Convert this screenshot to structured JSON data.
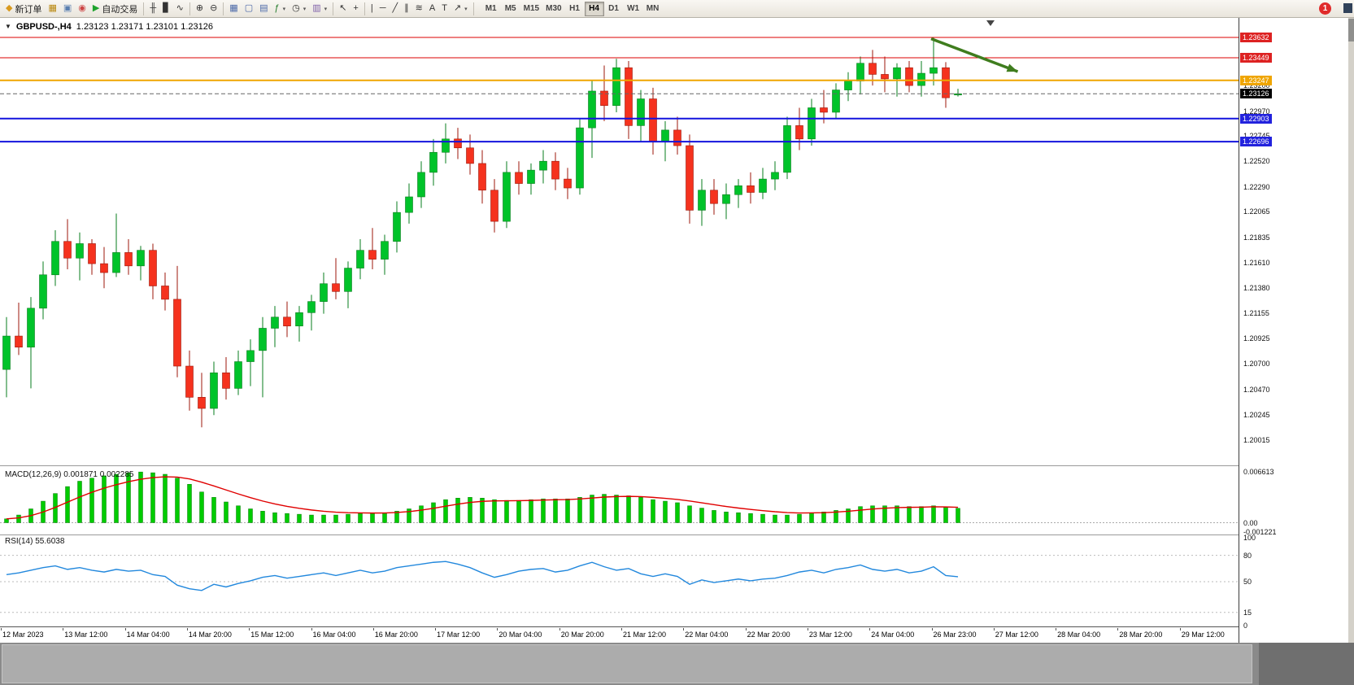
{
  "icons": {
    "panel_toggle": "▼"
  },
  "toolbar": {
    "notification_badge": "1",
    "items": [
      {
        "name": "new-order-button",
        "glyph": "◆",
        "glyph_color": "#d99a1f",
        "label": "新订单"
      },
      {
        "name": "new-chart-button",
        "glyph": "▦",
        "glyph_color": "#b8860b"
      },
      {
        "name": "profiles-button",
        "glyph": "▣",
        "glyph_color": "#5a7fb0"
      },
      {
        "name": "community-button",
        "glyph": "◉",
        "glyph_color": "#cc4444"
      },
      {
        "name": "auto-trading-button",
        "glyph": "▶",
        "glyph_color": "#1fa32e",
        "label": "自动交易"
      },
      {
        "sep": true
      },
      {
        "name": "bar-chart-button",
        "glyph": "╫",
        "glyph_color": "#333333"
      },
      {
        "name": "candlestick-chart-button",
        "glyph": "▊",
        "glyph_color": "#333333"
      },
      {
        "name": "line-chart-button",
        "glyph": "∿",
        "glyph_color": "#333333"
      },
      {
        "sep": true
      },
      {
        "name": "zoom-in-button",
        "glyph": "⊕",
        "glyph_color": "#333333"
      },
      {
        "name": "zoom-out-button",
        "glyph": "⊖",
        "glyph_color": "#333333"
      },
      {
        "sep": true
      },
      {
        "name": "tile-windows-button",
        "glyph": "▦",
        "glyph_color": "#4a68a8"
      },
      {
        "name": "cascade-windows-button",
        "glyph": "▢",
        "glyph_color": "#4a68a8"
      },
      {
        "name": "arrange-windows-button",
        "glyph": "▤",
        "glyph_color": "#4a68a8"
      },
      {
        "name": "indicators-button",
        "glyph": "ƒ",
        "glyph_color": "#1f7a28",
        "dropdown": true
      },
      {
        "name": "periods-button",
        "glyph": "◷",
        "glyph_color": "#333333",
        "dropdown": true
      },
      {
        "name": "templates-button",
        "glyph": "▥",
        "glyph_color": "#7d5ea8",
        "dropdown": true
      },
      {
        "sep": true
      },
      {
        "name": "cursor-button",
        "glyph": "↖",
        "glyph_color": "#333333"
      },
      {
        "name": "crosshair-button",
        "glyph": "+",
        "glyph_color": "#333333"
      },
      {
        "sep": true
      },
      {
        "name": "vertical-line-button",
        "glyph": "|",
        "glyph_color": "#333333"
      },
      {
        "name": "horizontal-line-button",
        "glyph": "─",
        "glyph_color": "#333333"
      },
      {
        "name": "trendline-button",
        "glyph": "╱",
        "glyph_color": "#333333"
      },
      {
        "name": "channel-button",
        "glyph": "∥",
        "glyph_color": "#333333"
      },
      {
        "name": "fibonacci-button",
        "glyph": "≋",
        "glyph_color": "#333333"
      },
      {
        "name": "text-button",
        "glyph": "A",
        "glyph_color": "#333333"
      },
      {
        "name": "label-button",
        "glyph": "T",
        "glyph_color": "#333333"
      },
      {
        "name": "shapes-button",
        "glyph": "↗",
        "glyph_color": "#333333",
        "dropdown": true
      },
      {
        "sep": true
      }
    ],
    "timeframes": [
      "M1",
      "M5",
      "M15",
      "M30",
      "H1",
      "H4",
      "D1",
      "W1",
      "MN"
    ],
    "active_timeframe": "H4"
  },
  "chart": {
    "symbol_period": "GBPUSD-,H4",
    "ohlc_text": "1.23123 1.23171 1.23101 1.23126"
  },
  "chart_data": {
    "type": "candlestick",
    "symbol": "GBPUSD-",
    "period": "H4",
    "ohlc_current": {
      "open": "1.23123",
      "high": "1.23171",
      "low": "1.23101",
      "close": "1.23126"
    },
    "colors": {
      "up": "#00c32a",
      "down": "#f5321e",
      "up_border": "#077d1d",
      "down_border": "#9c170b"
    },
    "candles": [
      [
        1.2065,
        1.2112,
        1.204,
        1.2095
      ],
      [
        1.2095,
        1.2125,
        1.2078,
        1.2085
      ],
      [
        1.2085,
        1.213,
        1.2048,
        1.212
      ],
      [
        1.212,
        1.2162,
        1.211,
        1.215
      ],
      [
        1.215,
        1.219,
        1.214,
        1.218
      ],
      [
        1.218,
        1.22,
        1.2155,
        1.2165
      ],
      [
        1.2165,
        1.2188,
        1.2145,
        1.2178
      ],
      [
        1.2178,
        1.2182,
        1.215,
        1.216
      ],
      [
        1.216,
        1.2175,
        1.2138,
        1.2152
      ],
      [
        1.2152,
        1.2205,
        1.2148,
        1.217
      ],
      [
        1.217,
        1.2182,
        1.215,
        1.2158
      ],
      [
        1.2158,
        1.2176,
        1.2145,
        1.2172
      ],
      [
        1.2172,
        1.2178,
        1.2128,
        1.214
      ],
      [
        1.214,
        1.2152,
        1.2118,
        1.2128
      ],
      [
        1.2128,
        1.2158,
        1.2058,
        1.2068
      ],
      [
        1.2068,
        1.2082,
        1.2028,
        1.204
      ],
      [
        1.204,
        1.2062,
        1.2013,
        1.203
      ],
      [
        1.203,
        1.2072,
        1.2024,
        1.2062
      ],
      [
        1.2062,
        1.2076,
        1.2038,
        1.2048
      ],
      [
        1.2048,
        1.2082,
        1.2042,
        1.2072
      ],
      [
        1.2072,
        1.2092,
        1.205,
        1.2082
      ],
      [
        1.2082,
        1.2112,
        1.204,
        1.2102
      ],
      [
        1.2102,
        1.2122,
        1.2085,
        1.2112
      ],
      [
        1.2112,
        1.2126,
        1.2094,
        1.2104
      ],
      [
        1.2104,
        1.2122,
        1.209,
        1.2116
      ],
      [
        1.2116,
        1.2132,
        1.21,
        1.2126
      ],
      [
        1.2126,
        1.2152,
        1.2115,
        1.2142
      ],
      [
        1.2142,
        1.2165,
        1.2128,
        1.2135
      ],
      [
        1.2135,
        1.2162,
        1.212,
        1.2156
      ],
      [
        1.2156,
        1.2182,
        1.2146,
        1.2172
      ],
      [
        1.2172,
        1.2192,
        1.2155,
        1.2164
      ],
      [
        1.2164,
        1.2186,
        1.215,
        1.218
      ],
      [
        1.218,
        1.2216,
        1.217,
        1.2206
      ],
      [
        1.2206,
        1.2232,
        1.2196,
        1.222
      ],
      [
        1.222,
        1.2252,
        1.221,
        1.2242
      ],
      [
        1.2242,
        1.2272,
        1.223,
        1.226
      ],
      [
        1.226,
        1.2286,
        1.225,
        1.2272
      ],
      [
        1.2272,
        1.2282,
        1.2254,
        1.2264
      ],
      [
        1.2264,
        1.2276,
        1.224,
        1.225
      ],
      [
        1.225,
        1.2262,
        1.2214,
        1.2226
      ],
      [
        1.2226,
        1.2236,
        1.2188,
        1.2198
      ],
      [
        1.2198,
        1.2252,
        1.2192,
        1.2242
      ],
      [
        1.2242,
        1.2252,
        1.2222,
        1.2232
      ],
      [
        1.2232,
        1.225,
        1.2222,
        1.2244
      ],
      [
        1.2244,
        1.2262,
        1.2232,
        1.2252
      ],
      [
        1.2252,
        1.226,
        1.2226,
        1.2236
      ],
      [
        1.2236,
        1.2246,
        1.2218,
        1.2228
      ],
      [
        1.2228,
        1.229,
        1.2222,
        1.2282
      ],
      [
        1.2282,
        1.2325,
        1.2255,
        1.2315
      ],
      [
        1.2315,
        1.2338,
        1.2288,
        1.2302
      ],
      [
        1.2302,
        1.2344,
        1.2296,
        1.2336
      ],
      [
        1.2336,
        1.2342,
        1.2272,
        1.2284
      ],
      [
        1.2284,
        1.2316,
        1.227,
        1.2308
      ],
      [
        1.2308,
        1.2318,
        1.2258,
        1.227
      ],
      [
        1.227,
        1.2288,
        1.2252,
        1.228
      ],
      [
        1.228,
        1.2292,
        1.2258,
        1.2266
      ],
      [
        1.2266,
        1.2276,
        1.2196,
        1.2208
      ],
      [
        1.2208,
        1.2236,
        1.2194,
        1.2226
      ],
      [
        1.2226,
        1.2236,
        1.2204,
        1.2214
      ],
      [
        1.2214,
        1.2232,
        1.22,
        1.2222
      ],
      [
        1.2222,
        1.2236,
        1.221,
        1.223
      ],
      [
        1.223,
        1.2242,
        1.2214,
        1.2224
      ],
      [
        1.2224,
        1.2246,
        1.2218,
        1.2236
      ],
      [
        1.2236,
        1.2252,
        1.2226,
        1.2242
      ],
      [
        1.2242,
        1.2292,
        1.2236,
        1.2284
      ],
      [
        1.2284,
        1.23,
        1.2262,
        1.2272
      ],
      [
        1.2272,
        1.2308,
        1.2266,
        1.23
      ],
      [
        1.23,
        1.2316,
        1.2286,
        1.2296
      ],
      [
        1.2296,
        1.2322,
        1.229,
        1.2316
      ],
      [
        1.2316,
        1.2332,
        1.2306,
        1.2324
      ],
      [
        1.2324,
        1.2346,
        1.2312,
        1.234
      ],
      [
        1.234,
        1.2352,
        1.232,
        1.233
      ],
      [
        1.233,
        1.2346,
        1.2314,
        1.2326
      ],
      [
        1.2326,
        1.234,
        1.231,
        1.2336
      ],
      [
        1.2336,
        1.2342,
        1.2314,
        1.232
      ],
      [
        1.232,
        1.2342,
        1.231,
        1.2331
      ],
      [
        1.2331,
        1.2363,
        1.232,
        1.2336
      ],
      [
        1.2336,
        1.2341,
        1.23,
        1.2309
      ],
      [
        1.23123,
        1.23171,
        1.23101,
        1.23126
      ]
    ],
    "levels": [
      {
        "name": "resistance-line-1",
        "price": 1.23632,
        "label": "1.23632",
        "color": "#dd0000",
        "line_width": 1,
        "label_bg": "#dd2222"
      },
      {
        "name": "resistance-line-2",
        "price": 1.23449,
        "label": "1.23449",
        "color": "#dd0000",
        "line_width": 1,
        "label_bg": "#dd2222"
      },
      {
        "name": "pivot-line",
        "price": 1.23247,
        "label": "1.23247",
        "color": "#efa500",
        "line_width": 2,
        "label_bg": "#efa500"
      },
      {
        "name": "support-line-1",
        "price": 1.22903,
        "label": "1.22903",
        "color": "#1414dd",
        "line_width": 2,
        "label_bg": "#2222dd"
      },
      {
        "name": "support-line-2",
        "price": 1.22696,
        "label": "1.22696",
        "color": "#1414dd",
        "line_width": 2,
        "label_bg": "#2222dd"
      }
    ],
    "current_price": {
      "price": 1.23126,
      "label": "1.23126",
      "label_bg": "#000000",
      "line_color": "#666666"
    },
    "price_axis_labels": [
      "1.23200",
      "1.22970",
      "1.22745",
      "1.22520",
      "1.22290",
      "1.22065",
      "1.21835",
      "1.21610",
      "1.21380",
      "1.21155",
      "1.20925",
      "1.20700",
      "1.20470",
      "1.20245",
      "1.20015"
    ],
    "time_labels": [
      "12 Mar 2023",
      "13 Mar 12:00",
      "14 Mar 04:00",
      "14 Mar 20:00",
      "15 Mar 12:00",
      "16 Mar 04:00",
      "16 Mar 20:00",
      "17 Mar 12:00",
      "20 Mar 04:00",
      "20 Mar 20:00",
      "21 Mar 12:00",
      "22 Mar 04:00",
      "22 Mar 20:00",
      "23 Mar 12:00",
      "24 Mar 04:00",
      "26 Mar 23:00",
      "27 Mar 12:00",
      "28 Mar 04:00",
      "28 Mar 20:00",
      "29 Mar 12:00"
    ],
    "indicators": {
      "macd": {
        "label": "MACD(12,26,9) 0.001871 0.002285",
        "histogram_color": "#00cc00",
        "histogram_border": "#0a7a0a",
        "signal_color": "#e00000",
        "ymax": 0.006613,
        "ymin": -0.001221,
        "axis": [
          {
            "text": "0.006613",
            "value": 0.006613
          },
          {
            "text": "0.00",
            "value": 0
          },
          {
            "text": "-0.001221",
            "value": -0.001221
          }
        ],
        "values": [
          0.0005,
          0.001,
          0.0018,
          0.0028,
          0.0038,
          0.0047,
          0.0054,
          0.0058,
          0.0061,
          0.0063,
          0.0065,
          0.0066,
          0.0065,
          0.0063,
          0.0058,
          0.005,
          0.004,
          0.0033,
          0.0027,
          0.0022,
          0.0018,
          0.0015,
          0.0013,
          0.0012,
          0.0011,
          0.001,
          0.001,
          0.001,
          0.0011,
          0.0012,
          0.0012,
          0.0013,
          0.0015,
          0.0018,
          0.0022,
          0.0026,
          0.003,
          0.0032,
          0.0033,
          0.0032,
          0.003,
          0.0029,
          0.0029,
          0.003,
          0.0031,
          0.0031,
          0.0031,
          0.0033,
          0.0036,
          0.0037,
          0.0036,
          0.0035,
          0.0033,
          0.003,
          0.0028,
          0.0026,
          0.0022,
          0.0019,
          0.0016,
          0.0014,
          0.0013,
          0.0012,
          0.0011,
          0.001,
          0.001,
          0.0011,
          0.0013,
          0.0014,
          0.0016,
          0.0018,
          0.0021,
          0.0022,
          0.0022,
          0.0022,
          0.0021,
          0.0021,
          0.0022,
          0.002,
          0.001871
        ]
      },
      "rsi": {
        "label": "RSI(14) 55.6038",
        "color": "#2288dd",
        "levels": [
          80,
          50,
          15
        ],
        "axis": [
          {
            "text": "100",
            "value": 100
          },
          {
            "text": "80",
            "value": 80
          },
          {
            "text": "50",
            "value": 50
          },
          {
            "text": "15",
            "value": 15
          },
          {
            "text": "0",
            "value": 0
          }
        ],
        "values": [
          58,
          60,
          63,
          66,
          68,
          64,
          66,
          63,
          61,
          64,
          62,
          63,
          58,
          56,
          46,
          42,
          40,
          47,
          44,
          48,
          51,
          55,
          57,
          54,
          56,
          58,
          60,
          57,
          60,
          63,
          60,
          62,
          66,
          68,
          70,
          72,
          73,
          70,
          66,
          60,
          55,
          58,
          62,
          64,
          65,
          61,
          63,
          68,
          72,
          67,
          63,
          65,
          59,
          56,
          59,
          56,
          47,
          52,
          49,
          51,
          53,
          51,
          53,
          54,
          57,
          61,
          63,
          60,
          64,
          66,
          69,
          64,
          62,
          64,
          60,
          62,
          67,
          57,
          55.6
        ]
      }
    },
    "annotation_arrow": {
      "from_candle": 75.8,
      "from_price": 1.2362,
      "to_candle": 82.9,
      "to_price": 1.23325,
      "color": "#3f7d1e"
    }
  }
}
